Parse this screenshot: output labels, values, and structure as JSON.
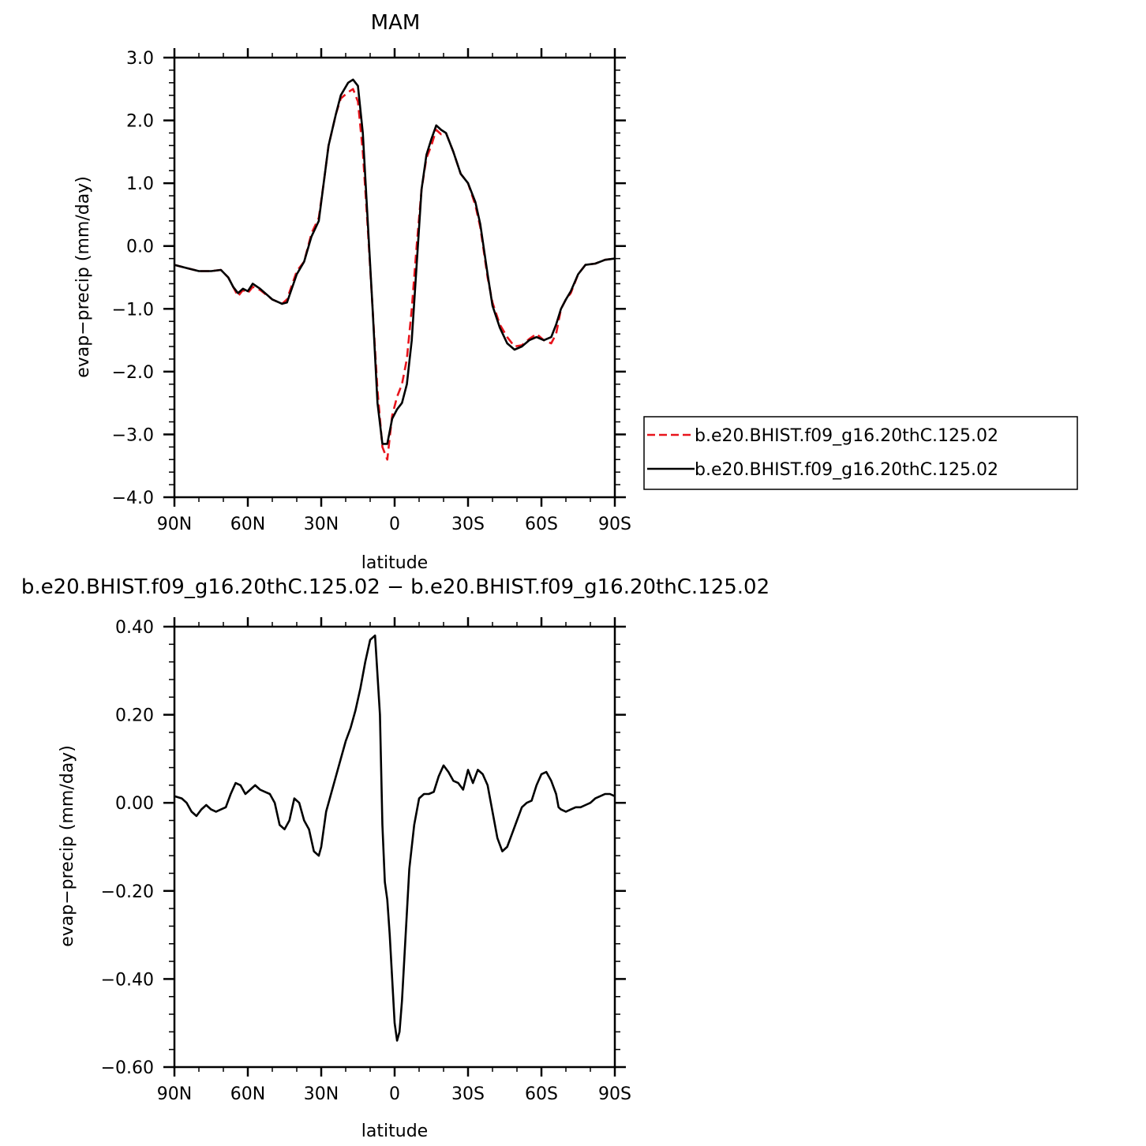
{
  "chart_data": [
    {
      "type": "line",
      "title": "MAM",
      "xlabel": "latitude",
      "ylabel": "evap−precip (mm/day)",
      "xlim": [
        90,
        -90
      ],
      "ylim": [
        -4.0,
        3.0
      ],
      "x_ticks": [
        90,
        60,
        30,
        0,
        -30,
        -60,
        -90
      ],
      "x_tick_labels": [
        "90N",
        "60N",
        "30N",
        "0",
        "30S",
        "60S",
        "90S"
      ],
      "y_ticks": [
        3.0,
        2.0,
        1.0,
        0.0,
        -1.0,
        -2.0,
        -3.0,
        -4.0
      ],
      "y_tick_labels": [
        "3.0",
        "2.0",
        "1.0",
        "0.0",
        "−1.0",
        "−2.0",
        "−3.0",
        "−4.0"
      ],
      "grid": false,
      "legend_position": "right",
      "series": [
        {
          "name": "b.e20.BHIST.f09_g16.20thC.125.02",
          "color": "#e8141c",
          "dash": "dashed",
          "x": [
            90,
            85,
            80,
            75,
            71,
            68,
            66,
            64,
            62,
            60,
            58,
            55,
            50,
            46,
            44,
            40,
            37,
            34,
            31,
            29,
            27,
            24,
            22,
            19,
            17,
            15,
            13,
            11,
            9,
            7,
            5,
            3,
            1,
            -1,
            -3,
            -5,
            -7,
            -9,
            -11,
            -13,
            -15,
            -17,
            -19,
            -21,
            -24,
            -27,
            -30,
            -33,
            -35,
            -38,
            -40,
            -43,
            -46,
            -49,
            -52,
            -55,
            -58,
            -61,
            -64,
            -66,
            -68,
            -70,
            -72,
            -75,
            -78,
            -82,
            -86,
            -90
          ],
          "y": [
            -0.3,
            -0.35,
            -0.4,
            -0.4,
            -0.38,
            -0.5,
            -0.65,
            -0.8,
            -0.7,
            -0.75,
            -0.65,
            -0.7,
            -0.85,
            -0.92,
            -0.85,
            -0.4,
            -0.25,
            0.2,
            0.45,
            1.0,
            1.6,
            2.1,
            2.35,
            2.45,
            2.5,
            2.3,
            1.5,
            0.3,
            -1.0,
            -2.3,
            -3.2,
            -3.4,
            -2.7,
            -2.4,
            -2.2,
            -1.8,
            -1.0,
            0.0,
            0.9,
            1.4,
            1.6,
            1.85,
            1.78,
            1.8,
            1.5,
            1.15,
            1.0,
            0.65,
            0.3,
            -0.5,
            -0.9,
            -1.25,
            -1.45,
            -1.6,
            -1.58,
            -1.48,
            -1.4,
            -1.5,
            -1.55,
            -1.4,
            -1.0,
            -0.85,
            -0.75,
            -0.45,
            -0.3,
            -0.28,
            -0.22,
            -0.2
          ]
        },
        {
          "name": "b.e20.BHIST.f09_g16.20thC.125.02",
          "color": "#000000",
          "dash": "solid",
          "x": [
            90,
            85,
            80,
            75,
            71,
            68,
            66,
            64,
            62,
            60,
            58,
            55,
            50,
            46,
            44,
            40,
            37,
            34,
            31,
            29,
            27,
            24,
            22,
            19,
            17,
            15,
            13,
            11,
            9,
            7,
            5,
            3,
            1,
            -1,
            -3,
            -5,
            -7,
            -9,
            -11,
            -13,
            -15,
            -17,
            -19,
            -21,
            -24,
            -27,
            -30,
            -33,
            -35,
            -38,
            -40,
            -43,
            -46,
            -49,
            -52,
            -55,
            -58,
            -61,
            -64,
            -66,
            -68,
            -70,
            -72,
            -75,
            -78,
            -82,
            -86,
            -90
          ],
          "y": [
            -0.3,
            -0.35,
            -0.4,
            -0.4,
            -0.38,
            -0.5,
            -0.65,
            -0.75,
            -0.68,
            -0.72,
            -0.6,
            -0.68,
            -0.85,
            -0.92,
            -0.9,
            -0.45,
            -0.25,
            0.15,
            0.4,
            1.0,
            1.6,
            2.1,
            2.4,
            2.6,
            2.65,
            2.55,
            1.8,
            0.4,
            -1.0,
            -2.5,
            -3.15,
            -3.15,
            -2.75,
            -2.6,
            -2.5,
            -2.2,
            -1.5,
            -0.3,
            0.9,
            1.45,
            1.7,
            1.92,
            1.85,
            1.8,
            1.5,
            1.15,
            1.0,
            0.7,
            0.35,
            -0.45,
            -0.95,
            -1.3,
            -1.55,
            -1.65,
            -1.6,
            -1.5,
            -1.45,
            -1.5,
            -1.45,
            -1.25,
            -1.0,
            -0.85,
            -0.72,
            -0.45,
            -0.3,
            -0.28,
            -0.22,
            -0.2
          ]
        }
      ]
    },
    {
      "type": "line",
      "title": "b.e20.BHIST.f09_g16.20thC.125.02 − b.e20.BHIST.f09_g16.20thC.125.02",
      "xlabel": "latitude",
      "ylabel": "evap−precip (mm/day)",
      "xlim": [
        90,
        -90
      ],
      "ylim": [
        -0.6,
        0.4
      ],
      "x_ticks": [
        90,
        60,
        30,
        0,
        -30,
        -60,
        -90
      ],
      "x_tick_labels": [
        "90N",
        "60N",
        "30N",
        "0",
        "30S",
        "60S",
        "90S"
      ],
      "y_ticks": [
        0.4,
        0.2,
        0.0,
        -0.2,
        -0.4,
        -0.6
      ],
      "y_tick_labels": [
        "0.40",
        "0.20",
        "0.00",
        "−0.20",
        "−0.40",
        "−0.60"
      ],
      "grid": false,
      "series": [
        {
          "color": "#000000",
          "dash": "solid",
          "x": [
            90,
            87,
            85,
            83,
            81,
            79,
            77,
            75,
            73,
            71,
            69,
            67,
            65,
            63,
            61,
            59,
            57,
            55,
            53,
            51,
            49,
            47,
            45,
            43,
            41,
            39,
            37,
            35,
            33,
            31,
            30,
            29,
            28,
            26,
            24,
            22,
            20,
            18,
            16,
            14,
            12,
            10,
            8,
            6,
            5,
            4,
            3,
            2,
            1,
            0,
            -1,
            -2,
            -3,
            -4,
            -5,
            -6,
            -8,
            -10,
            -12,
            -14,
            -16,
            -18,
            -20,
            -22,
            -24,
            -26,
            -28,
            -30,
            -32,
            -34,
            -36,
            -38,
            -40,
            -42,
            -44,
            -46,
            -48,
            -50,
            -52,
            -54,
            -56,
            -58,
            -60,
            -62,
            -64,
            -66,
            -67,
            -68,
            -70,
            -72,
            -74,
            -76,
            -78,
            -80,
            -82,
            -84,
            -86,
            -88,
            -90
          ],
          "y": [
            0.015,
            0.01,
            0.0,
            -0.02,
            -0.03,
            -0.015,
            -0.005,
            -0.015,
            -0.02,
            -0.015,
            -0.01,
            0.02,
            0.045,
            0.04,
            0.02,
            0.03,
            0.04,
            0.03,
            0.025,
            0.02,
            0.0,
            -0.05,
            -0.06,
            -0.04,
            0.01,
            0.0,
            -0.04,
            -0.06,
            -0.11,
            -0.12,
            -0.1,
            -0.06,
            -0.02,
            0.02,
            0.06,
            0.1,
            0.14,
            0.17,
            0.21,
            0.26,
            0.32,
            0.37,
            0.38,
            0.2,
            -0.05,
            -0.18,
            -0.22,
            -0.3,
            -0.4,
            -0.5,
            -0.54,
            -0.52,
            -0.45,
            -0.35,
            -0.25,
            -0.15,
            -0.05,
            0.01,
            0.02,
            0.02,
            0.025,
            0.06,
            0.085,
            0.07,
            0.05,
            0.045,
            0.03,
            0.075,
            0.045,
            0.075,
            0.065,
            0.04,
            -0.02,
            -0.08,
            -0.11,
            -0.1,
            -0.07,
            -0.04,
            -0.01,
            0.0,
            0.005,
            0.04,
            0.065,
            0.07,
            0.05,
            0.02,
            -0.01,
            -0.015,
            -0.02,
            -0.015,
            -0.01,
            -0.01,
            -0.005,
            0.0,
            0.01,
            0.015,
            0.02,
            0.02,
            0.015
          ]
        }
      ]
    }
  ]
}
